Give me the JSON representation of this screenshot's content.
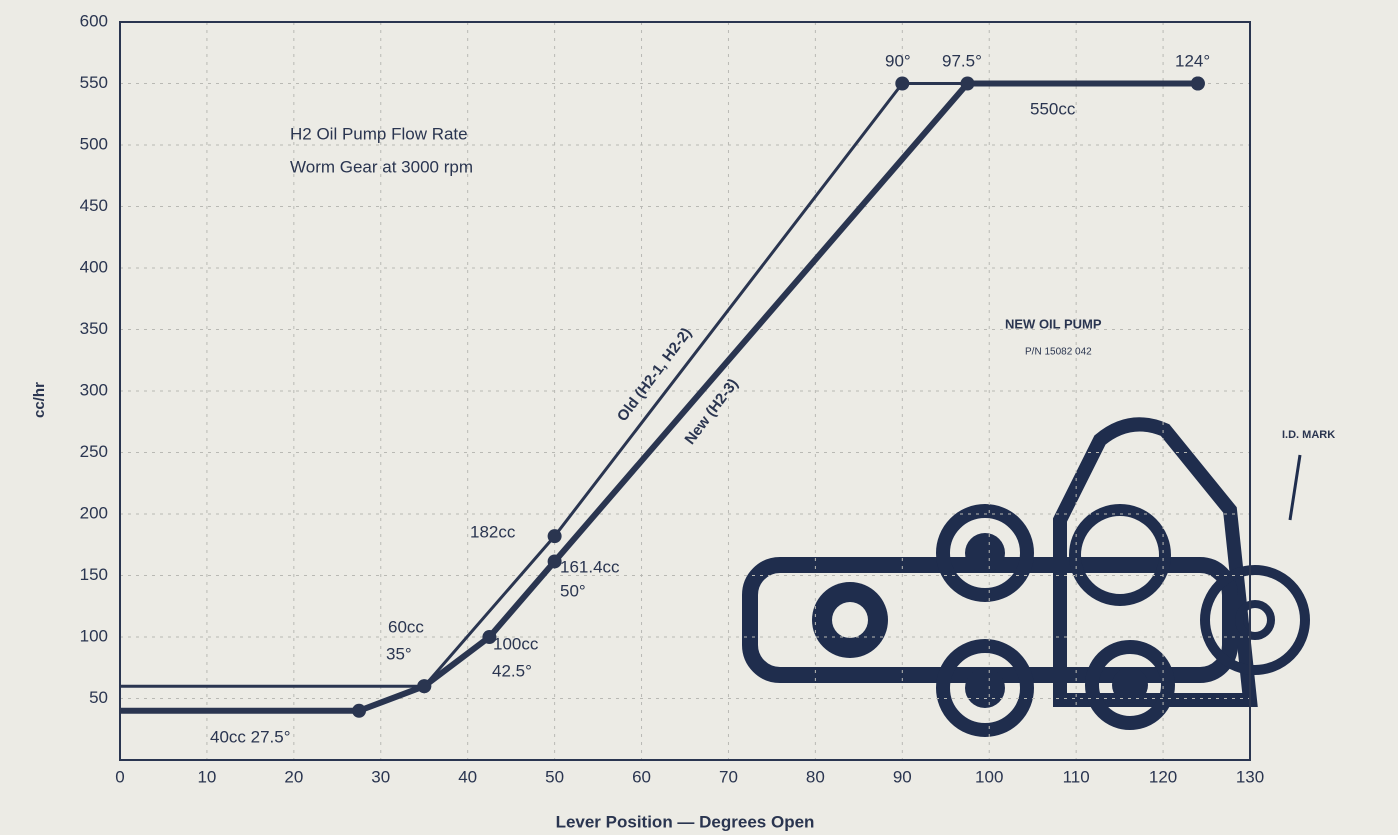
{
  "chart_data": {
    "type": "line",
    "x_label": "Lever Position — Degrees Open",
    "y_label": "cc/hr",
    "xlim": [
      0,
      130
    ],
    "ylim": [
      0,
      600
    ],
    "xticks": [
      0,
      10,
      20,
      30,
      40,
      50,
      60,
      70,
      80,
      90,
      100,
      110,
      120,
      130
    ],
    "yticks": [
      50,
      100,
      150,
      200,
      250,
      300,
      350,
      400,
      450,
      500,
      550,
      600
    ],
    "grid": true,
    "series": [
      {
        "name": "Old (H2-1, H2-2)",
        "color": "#2a3550",
        "x": [
          0,
          35,
          50,
          90,
          124
        ],
        "values": [
          60,
          60,
          182,
          550,
          550
        ]
      },
      {
        "name": "New (H2-3)",
        "color": "#2a3550",
        "x": [
          0,
          27.5,
          35,
          42.5,
          50,
          97.5,
          124
        ],
        "values": [
          40,
          40,
          60,
          100,
          161.4,
          550,
          550
        ]
      }
    ],
    "annotations": [
      "H2 Oil Pump Flow Rate",
      "Worm Gear at 3000 rpm",
      "40cc 27.5°",
      "60cc",
      "35°",
      "182cc",
      "161.4cc",
      "50°",
      "100cc",
      "42.5°",
      "90°",
      "97.5°",
      "124°",
      "550cc",
      "NEW OIL PUMP",
      "P/N 15082 042",
      "I.D. MARK"
    ]
  }
}
